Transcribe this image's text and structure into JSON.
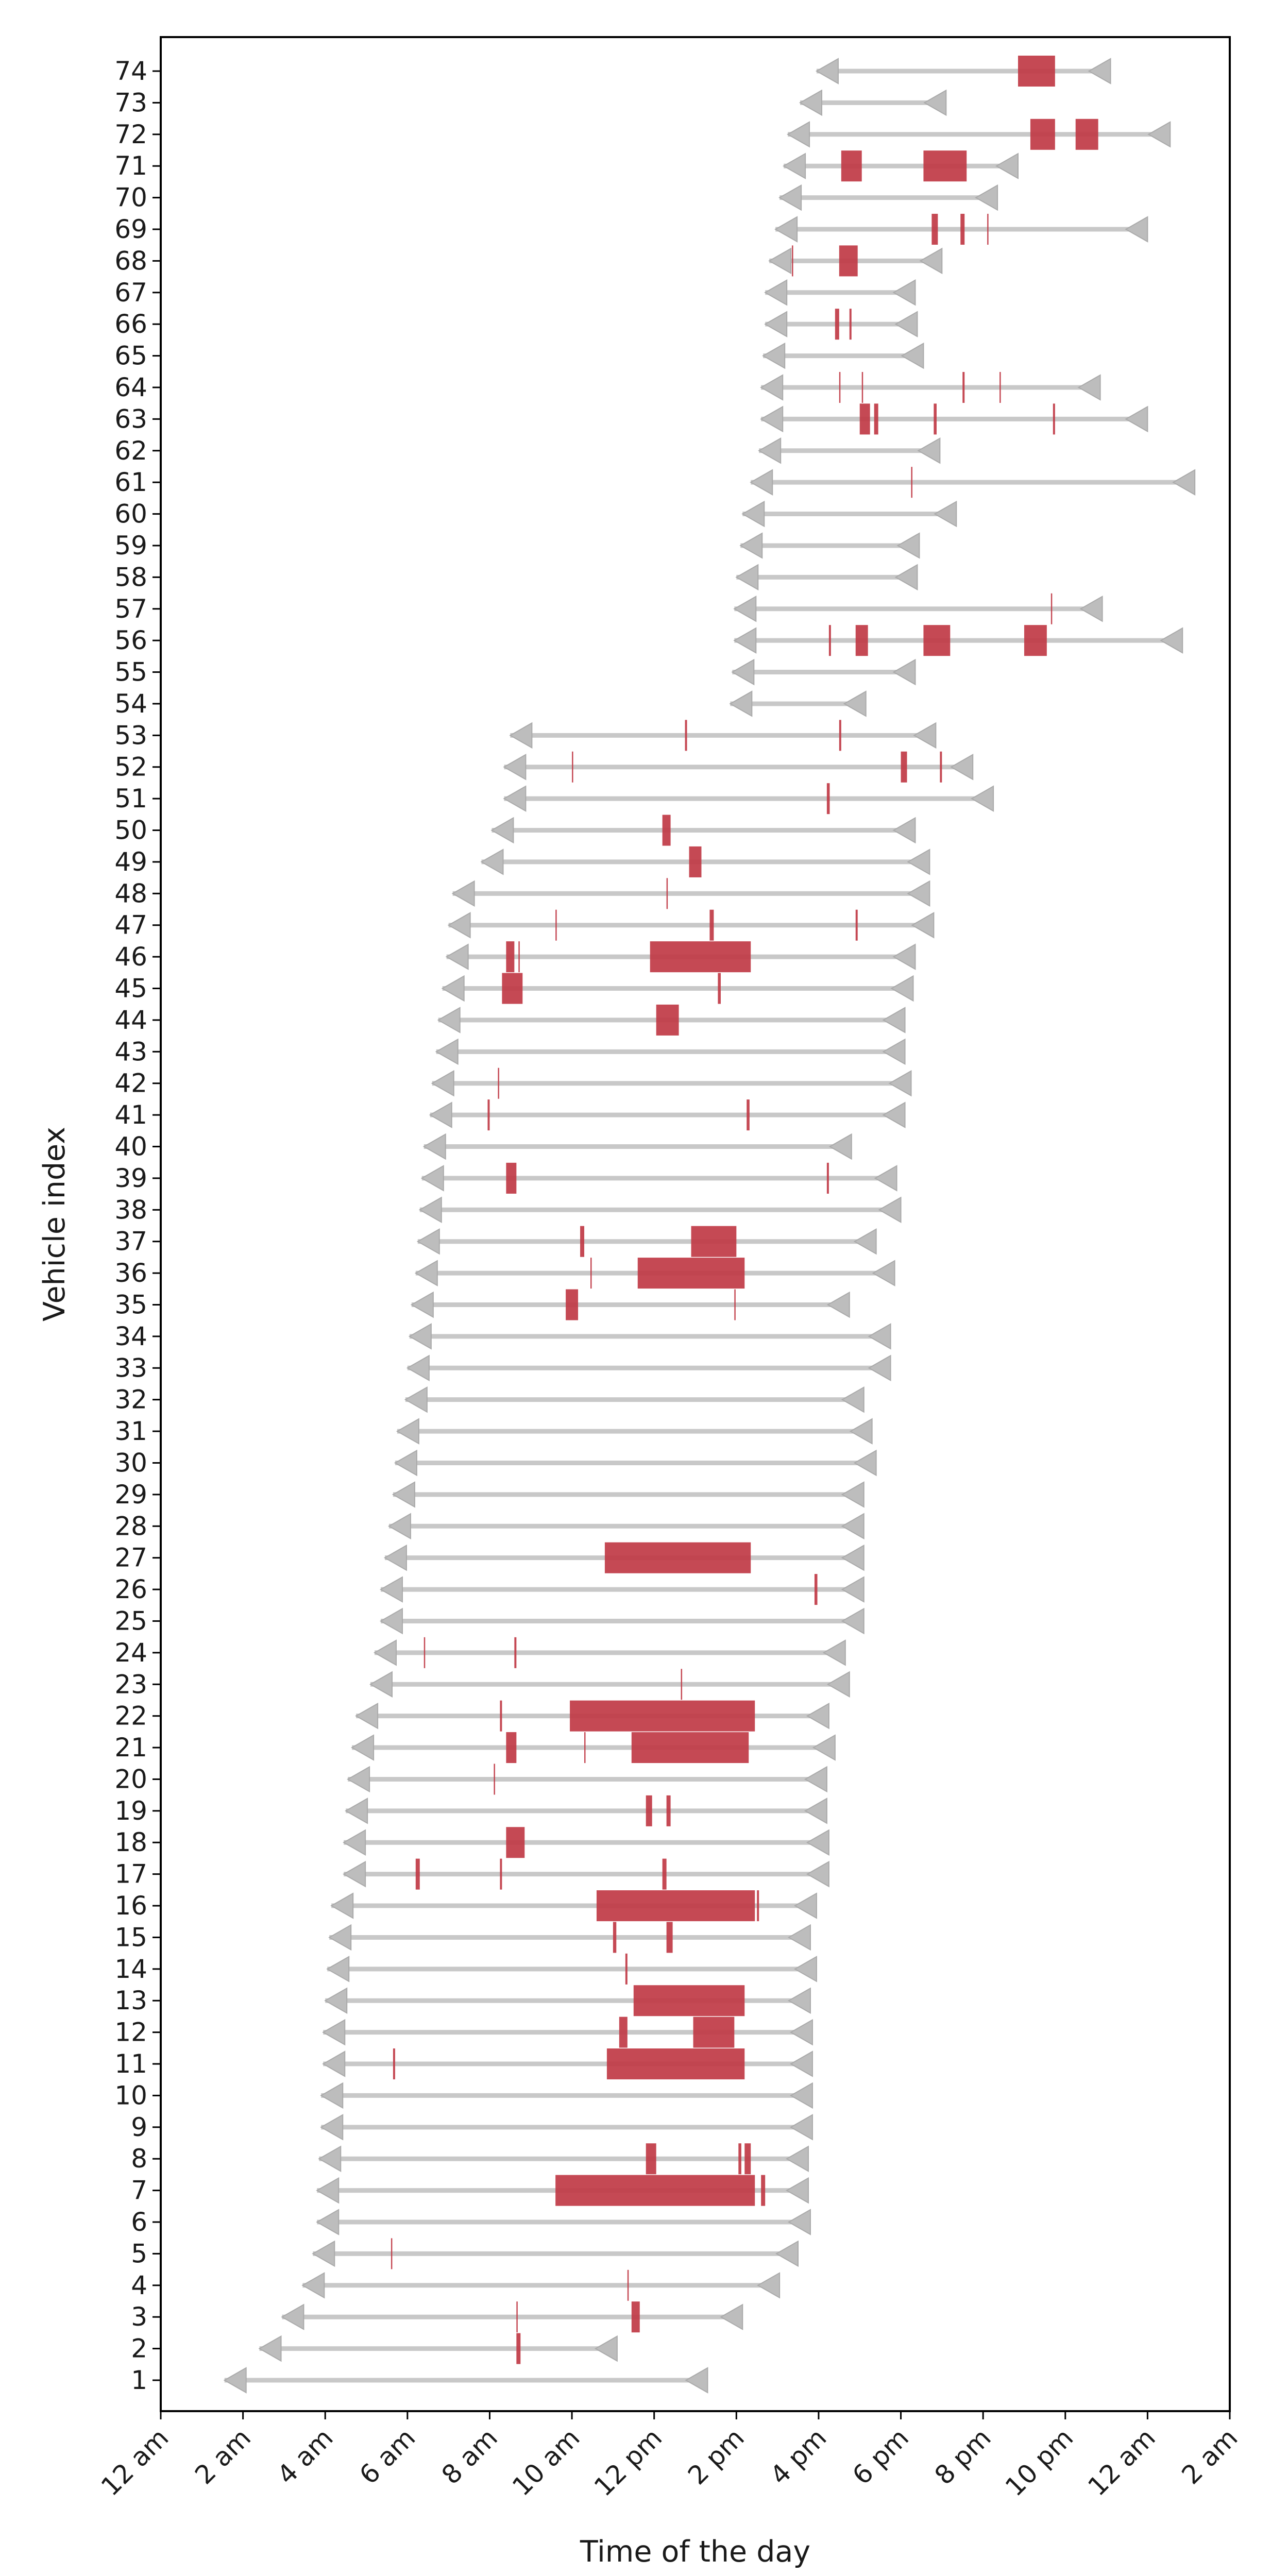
{
  "chart_data": {
    "type": "gantt",
    "xlabel": "Time of the day",
    "ylabel": "Vehicle index",
    "x_unit": "hours since midnight (axis tick labels show clock time)",
    "xlim": [
      0,
      26
    ],
    "x_ticks": [
      {
        "value": 0,
        "label": "12 am"
      },
      {
        "value": 2,
        "label": "2 am"
      },
      {
        "value": 4,
        "label": "4 am"
      },
      {
        "value": 6,
        "label": "6 am"
      },
      {
        "value": 8,
        "label": "8 am"
      },
      {
        "value": 10,
        "label": "10 am"
      },
      {
        "value": 12,
        "label": "12 pm"
      },
      {
        "value": 14,
        "label": "2 pm"
      },
      {
        "value": 16,
        "label": "4 pm"
      },
      {
        "value": 18,
        "label": "6 pm"
      },
      {
        "value": 20,
        "label": "8 pm"
      },
      {
        "value": 22,
        "label": "10 pm"
      },
      {
        "value": 24,
        "label": "12 am"
      },
      {
        "value": 26,
        "label": "2 am"
      }
    ],
    "grid": false,
    "colors": {
      "span": "#c8c8c8",
      "marker": "#bdbdbd",
      "event": "#c03a45",
      "axis": "#000000"
    },
    "vehicles": [
      {
        "id": 1,
        "start": 1.55,
        "end": 13.3,
        "events": []
      },
      {
        "id": 2,
        "start": 2.4,
        "end": 11.1,
        "events": [
          [
            8.65,
            8.75
          ]
        ]
      },
      {
        "id": 3,
        "start": 2.95,
        "end": 14.15,
        "events": [
          [
            8.65,
            8.68
          ],
          [
            11.45,
            11.65
          ]
        ]
      },
      {
        "id": 4,
        "start": 3.45,
        "end": 15.05,
        "events": [
          [
            11.35,
            11.38
          ]
        ]
      },
      {
        "id": 5,
        "start": 3.7,
        "end": 15.5,
        "events": [
          [
            5.6,
            5.63
          ]
        ]
      },
      {
        "id": 6,
        "start": 3.8,
        "end": 15.8,
        "events": []
      },
      {
        "id": 7,
        "start": 3.8,
        "end": 15.75,
        "events": [
          [
            9.6,
            14.45
          ],
          [
            14.6,
            14.7
          ]
        ]
      },
      {
        "id": 8,
        "start": 3.85,
        "end": 15.75,
        "events": [
          [
            11.8,
            12.05
          ],
          [
            14.05,
            14.12
          ],
          [
            14.2,
            14.35
          ]
        ]
      },
      {
        "id": 9,
        "start": 3.9,
        "end": 15.85,
        "events": []
      },
      {
        "id": 10,
        "start": 3.9,
        "end": 15.85,
        "events": []
      },
      {
        "id": 11,
        "start": 3.95,
        "end": 15.85,
        "events": [
          [
            5.65,
            5.7
          ],
          [
            10.85,
            14.2
          ]
        ]
      },
      {
        "id": 12,
        "start": 3.95,
        "end": 15.85,
        "events": [
          [
            11.15,
            11.35
          ],
          [
            12.95,
            13.95
          ]
        ]
      },
      {
        "id": 13,
        "start": 4.0,
        "end": 15.8,
        "events": [
          [
            11.5,
            14.2
          ]
        ]
      },
      {
        "id": 14,
        "start": 4.05,
        "end": 15.95,
        "events": [
          [
            11.3,
            11.35
          ]
        ]
      },
      {
        "id": 15,
        "start": 4.1,
        "end": 15.8,
        "events": [
          [
            11.0,
            11.08
          ],
          [
            12.3,
            12.45
          ]
        ]
      },
      {
        "id": 16,
        "start": 4.15,
        "end": 15.95,
        "events": [
          [
            10.6,
            14.45
          ],
          [
            14.5,
            14.55
          ]
        ]
      },
      {
        "id": 17,
        "start": 4.45,
        "end": 16.25,
        "events": [
          [
            6.2,
            6.3
          ],
          [
            8.25,
            8.3
          ],
          [
            12.2,
            12.3
          ]
        ]
      },
      {
        "id": 18,
        "start": 4.45,
        "end": 16.25,
        "events": [
          [
            8.4,
            8.85
          ]
        ]
      },
      {
        "id": 19,
        "start": 4.5,
        "end": 16.2,
        "events": [
          [
            11.8,
            11.95
          ],
          [
            12.3,
            12.4
          ]
        ]
      },
      {
        "id": 20,
        "start": 4.55,
        "end": 16.2,
        "events": [
          [
            8.1,
            8.13
          ]
        ]
      },
      {
        "id": 21,
        "start": 4.65,
        "end": 16.4,
        "events": [
          [
            8.4,
            8.65
          ],
          [
            10.3,
            10.33
          ],
          [
            11.45,
            14.3
          ]
        ]
      },
      {
        "id": 22,
        "start": 4.75,
        "end": 16.25,
        "events": [
          [
            8.25,
            8.3
          ],
          [
            9.95,
            14.45
          ]
        ]
      },
      {
        "id": 23,
        "start": 5.1,
        "end": 16.75,
        "events": [
          [
            12.65,
            12.68
          ]
        ]
      },
      {
        "id": 24,
        "start": 5.2,
        "end": 16.65,
        "events": [
          [
            6.4,
            6.43
          ],
          [
            8.6,
            8.65
          ]
        ]
      },
      {
        "id": 25,
        "start": 5.35,
        "end": 17.1,
        "events": []
      },
      {
        "id": 26,
        "start": 5.35,
        "end": 17.1,
        "events": [
          [
            15.9,
            15.97
          ]
        ]
      },
      {
        "id": 27,
        "start": 5.45,
        "end": 17.1,
        "events": [
          [
            10.8,
            14.35
          ]
        ]
      },
      {
        "id": 28,
        "start": 5.55,
        "end": 17.1,
        "events": []
      },
      {
        "id": 29,
        "start": 5.65,
        "end": 17.1,
        "events": []
      },
      {
        "id": 30,
        "start": 5.7,
        "end": 17.4,
        "events": []
      },
      {
        "id": 31,
        "start": 5.75,
        "end": 17.3,
        "events": []
      },
      {
        "id": 32,
        "start": 5.95,
        "end": 17.1,
        "events": []
      },
      {
        "id": 33,
        "start": 6.0,
        "end": 17.75,
        "events": []
      },
      {
        "id": 34,
        "start": 6.05,
        "end": 17.75,
        "events": []
      },
      {
        "id": 35,
        "start": 6.1,
        "end": 16.75,
        "events": [
          [
            9.85,
            10.15
          ],
          [
            13.95,
            13.98
          ]
        ]
      },
      {
        "id": 36,
        "start": 6.2,
        "end": 17.85,
        "events": [
          [
            10.45,
            10.48
          ],
          [
            11.6,
            14.2
          ]
        ]
      },
      {
        "id": 37,
        "start": 6.25,
        "end": 17.4,
        "events": [
          [
            10.2,
            10.3
          ],
          [
            12.9,
            14.0
          ]
        ]
      },
      {
        "id": 38,
        "start": 6.3,
        "end": 18.0,
        "events": []
      },
      {
        "id": 39,
        "start": 6.35,
        "end": 17.9,
        "events": [
          [
            8.4,
            8.65
          ],
          [
            16.2,
            16.25
          ]
        ]
      },
      {
        "id": 40,
        "start": 6.4,
        "end": 16.8,
        "events": []
      },
      {
        "id": 41,
        "start": 6.55,
        "end": 18.1,
        "events": [
          [
            7.95,
            8.0
          ],
          [
            14.25,
            14.32
          ]
        ]
      },
      {
        "id": 42,
        "start": 6.6,
        "end": 18.25,
        "events": [
          [
            8.2,
            8.23
          ]
        ]
      },
      {
        "id": 43,
        "start": 6.7,
        "end": 18.1,
        "events": []
      },
      {
        "id": 44,
        "start": 6.75,
        "end": 18.1,
        "events": [
          [
            12.05,
            12.6
          ]
        ]
      },
      {
        "id": 45,
        "start": 6.85,
        "end": 18.3,
        "events": [
          [
            8.3,
            8.8
          ],
          [
            13.55,
            13.62
          ]
        ]
      },
      {
        "id": 46,
        "start": 6.95,
        "end": 18.35,
        "events": [
          [
            8.4,
            8.6
          ],
          [
            8.7,
            8.73
          ],
          [
            11.9,
            14.35
          ]
        ]
      },
      {
        "id": 47,
        "start": 7.0,
        "end": 18.8,
        "events": [
          [
            9.6,
            9.63
          ],
          [
            13.35,
            13.45
          ],
          [
            16.9,
            16.95
          ]
        ]
      },
      {
        "id": 48,
        "start": 7.1,
        "end": 18.7,
        "events": [
          [
            12.3,
            12.33
          ]
        ]
      },
      {
        "id": 49,
        "start": 7.8,
        "end": 18.7,
        "events": [
          [
            12.85,
            13.15
          ]
        ]
      },
      {
        "id": 50,
        "start": 8.05,
        "end": 18.35,
        "events": [
          [
            12.2,
            12.4
          ]
        ]
      },
      {
        "id": 51,
        "start": 8.35,
        "end": 20.25,
        "events": [
          [
            16.2,
            16.27
          ]
        ]
      },
      {
        "id": 52,
        "start": 8.35,
        "end": 19.75,
        "events": [
          [
            10.0,
            10.03
          ],
          [
            18.0,
            18.15
          ],
          [
            18.95,
            19.0
          ]
        ]
      },
      {
        "id": 53,
        "start": 8.5,
        "end": 18.85,
        "events": [
          [
            12.75,
            12.8
          ],
          [
            16.5,
            16.55
          ]
        ]
      },
      {
        "id": 54,
        "start": 13.85,
        "end": 17.15,
        "events": []
      },
      {
        "id": 55,
        "start": 13.9,
        "end": 18.35,
        "events": []
      },
      {
        "id": 56,
        "start": 13.95,
        "end": 24.85,
        "events": [
          [
            16.25,
            16.3
          ],
          [
            16.9,
            17.2
          ],
          [
            18.55,
            19.2
          ],
          [
            21.0,
            21.55
          ]
        ]
      },
      {
        "id": 57,
        "start": 13.95,
        "end": 22.9,
        "events": [
          [
            21.65,
            21.68
          ]
        ]
      },
      {
        "id": 58,
        "start": 14.0,
        "end": 18.4,
        "events": []
      },
      {
        "id": 59,
        "start": 14.1,
        "end": 18.45,
        "events": []
      },
      {
        "id": 60,
        "start": 14.15,
        "end": 19.35,
        "events": []
      },
      {
        "id": 61,
        "start": 14.35,
        "end": 25.15,
        "events": [
          [
            18.25,
            18.28
          ]
        ]
      },
      {
        "id": 62,
        "start": 14.55,
        "end": 18.95,
        "events": []
      },
      {
        "id": 63,
        "start": 14.6,
        "end": 24.0,
        "events": [
          [
            17.0,
            17.25
          ],
          [
            17.35,
            17.45
          ],
          [
            18.8,
            18.87
          ],
          [
            21.7,
            21.75
          ]
        ]
      },
      {
        "id": 64,
        "start": 14.6,
        "end": 22.85,
        "events": [
          [
            16.5,
            16.53
          ],
          [
            17.05,
            17.08
          ],
          [
            19.5,
            19.55
          ],
          [
            20.4,
            20.43
          ]
        ]
      },
      {
        "id": 65,
        "start": 14.65,
        "end": 18.55,
        "events": []
      },
      {
        "id": 66,
        "start": 14.7,
        "end": 18.4,
        "events": [
          [
            16.4,
            16.5
          ],
          [
            16.75,
            16.8
          ]
        ]
      },
      {
        "id": 67,
        "start": 14.7,
        "end": 18.35,
        "events": []
      },
      {
        "id": 68,
        "start": 14.8,
        "end": 19.0,
        "events": [
          [
            15.35,
            15.38
          ],
          [
            16.5,
            16.95
          ]
        ]
      },
      {
        "id": 69,
        "start": 14.95,
        "end": 24.0,
        "events": [
          [
            18.75,
            18.9
          ],
          [
            19.45,
            19.55
          ],
          [
            20.1,
            20.13
          ]
        ]
      },
      {
        "id": 70,
        "start": 15.05,
        "end": 20.35,
        "events": []
      },
      {
        "id": 71,
        "start": 15.15,
        "end": 20.85,
        "events": [
          [
            16.55,
            17.05
          ],
          [
            18.55,
            19.6
          ]
        ]
      },
      {
        "id": 72,
        "start": 15.25,
        "end": 24.55,
        "events": [
          [
            21.15,
            21.75
          ],
          [
            22.25,
            22.8
          ]
        ]
      },
      {
        "id": 73,
        "start": 15.55,
        "end": 19.1,
        "events": []
      },
      {
        "id": 74,
        "start": 15.95,
        "end": 23.1,
        "events": [
          [
            20.85,
            21.75
          ]
        ]
      }
    ]
  }
}
